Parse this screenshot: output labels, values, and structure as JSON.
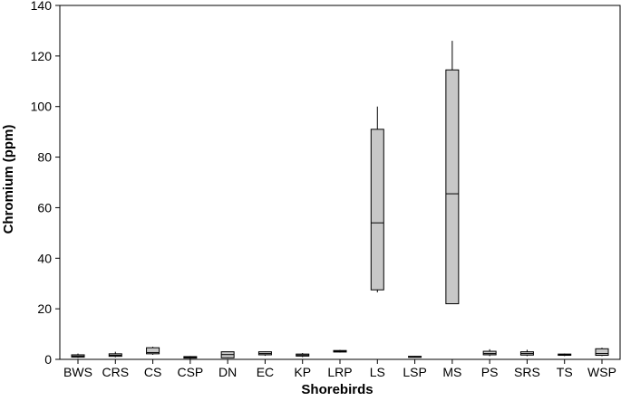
{
  "chart_data": {
    "type": "box",
    "xlabel": "Shorebirds",
    "ylabel": "Chromium (ppm)",
    "ylim": [
      0,
      140
    ],
    "yticks": [
      0,
      20,
      40,
      60,
      80,
      100,
      120,
      140
    ],
    "grid": false,
    "box_color": "#c8c8c8",
    "categories": [
      "BWS",
      "CRS",
      "CS",
      "CSP",
      "DN",
      "EC",
      "KP",
      "LRP",
      "LS",
      "LSP",
      "MS",
      "PS",
      "SRS",
      "TS",
      "WSP"
    ],
    "boxes": [
      {
        "min": 0.6,
        "q1": 0.9,
        "median": 1.3,
        "q3": 1.8,
        "max": 2.3
      },
      {
        "min": 0.8,
        "q1": 1.2,
        "median": 1.6,
        "q3": 2.2,
        "max": 3.0
      },
      {
        "min": 1.8,
        "q1": 2.2,
        "median": 2.7,
        "q3": 4.6,
        "max": 5.0
      },
      {
        "min": 0.2,
        "q1": 0.5,
        "median": 0.8,
        "q3": 1.1,
        "max": 1.3
      },
      {
        "min": 0.4,
        "q1": 0.6,
        "median": 1.9,
        "q3": 3.0,
        "max": 3.0
      },
      {
        "min": 1.4,
        "q1": 1.8,
        "median": 2.3,
        "q3": 3.0,
        "max": 3.1
      },
      {
        "min": 0.9,
        "q1": 1.3,
        "median": 1.7,
        "q3": 2.1,
        "max": 2.5
      },
      {
        "min": 2.7,
        "q1": 2.9,
        "median": 3.2,
        "q3": 3.5,
        "max": 3.7
      },
      {
        "min": 26.5,
        "q1": 27.5,
        "median": 54,
        "q3": 91,
        "max": 100
      },
      {
        "min": 0.7,
        "q1": 0.8,
        "median": 1.0,
        "q3": 1.2,
        "max": 1.3
      },
      {
        "min": 22,
        "q1": 22,
        "median": 65.5,
        "q3": 114.5,
        "max": 126
      },
      {
        "min": 1.3,
        "q1": 1.8,
        "median": 2.3,
        "q3": 3.2,
        "max": 4.0
      },
      {
        "min": 1.3,
        "q1": 1.7,
        "median": 2.3,
        "q3": 3.0,
        "max": 3.8
      },
      {
        "min": 1.3,
        "q1": 1.6,
        "median": 1.8,
        "q3": 2.1,
        "max": 2.3
      },
      {
        "min": 1.3,
        "q1": 1.6,
        "median": 2.3,
        "q3": 4.2,
        "max": 4.6
      }
    ]
  }
}
